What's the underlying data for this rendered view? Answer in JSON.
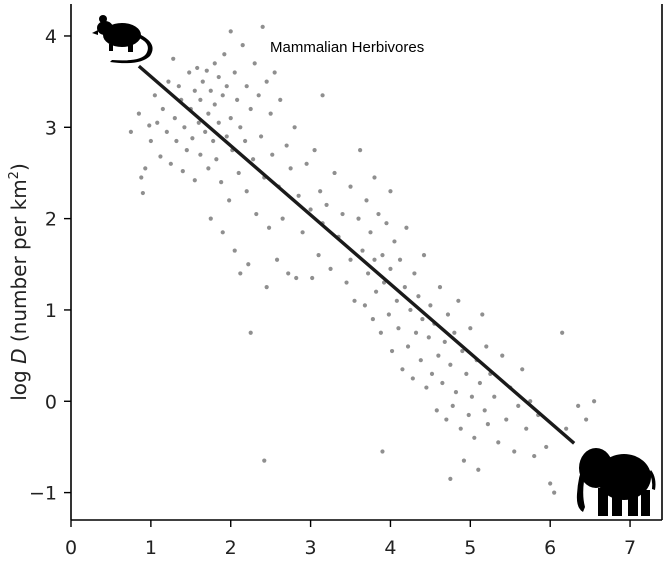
{
  "chart_data": {
    "type": "scatter",
    "title": "",
    "annotation": "Mammalian Herbivores",
    "xlabel": "",
    "ylabel": {
      "prefix": "log ",
      "var": "D",
      "unit": " (number per km",
      "sup": "2",
      "close": ")"
    },
    "xlim": [
      0,
      7.4
    ],
    "ylim": [
      -1.3,
      4.35
    ],
    "x_ticks": [
      0,
      1,
      2,
      3,
      4,
      5,
      6,
      7
    ],
    "y_ticks": [
      -1,
      0,
      1,
      2,
      3,
      4
    ],
    "y_tick_labels": [
      "−1",
      "0",
      "1",
      "2",
      "3",
      "4"
    ],
    "grid": false,
    "legend": "none",
    "icons": [
      "mouse-silhouette-icon",
      "elephant-silhouette-icon"
    ],
    "colors": {
      "points": "#8f8f8f",
      "fit_line": "#1a1a1a",
      "axes": "#000000"
    },
    "fit_line": {
      "x": [
        0.85,
        6.3
      ],
      "y": [
        3.67,
        -0.46
      ]
    },
    "series": [
      {
        "points": [
          [
            0.75,
            2.95
          ],
          [
            0.85,
            3.15
          ],
          [
            0.88,
            2.45
          ],
          [
            0.9,
            2.28
          ],
          [
            0.93,
            2.55
          ],
          [
            0.98,
            3.02
          ],
          [
            1.0,
            2.85
          ],
          [
            1.05,
            3.35
          ],
          [
            1.08,
            3.05
          ],
          [
            1.12,
            2.68
          ],
          [
            1.15,
            3.2
          ],
          [
            1.2,
            2.95
          ],
          [
            1.22,
            3.5
          ],
          [
            1.25,
            2.6
          ],
          [
            1.28,
            3.75
          ],
          [
            1.3,
            3.1
          ],
          [
            1.32,
            2.85
          ],
          [
            1.35,
            3.45
          ],
          [
            1.38,
            3.3
          ],
          [
            1.4,
            2.52
          ],
          [
            1.42,
            3.0
          ],
          [
            1.45,
            2.75
          ],
          [
            1.48,
            3.6
          ],
          [
            1.5,
            3.2
          ],
          [
            1.52,
            2.88
          ],
          [
            1.55,
            3.4
          ],
          [
            1.55,
            2.42
          ],
          [
            1.58,
            3.65
          ],
          [
            1.6,
            3.05
          ],
          [
            1.62,
            2.7
          ],
          [
            1.62,
            3.3
          ],
          [
            1.65,
            3.5
          ],
          [
            1.68,
            2.95
          ],
          [
            1.7,
            3.62
          ],
          [
            1.72,
            3.15
          ],
          [
            1.72,
            2.55
          ],
          [
            1.75,
            3.4
          ],
          [
            1.75,
            2.0
          ],
          [
            1.78,
            2.85
          ],
          [
            1.8,
            3.25
          ],
          [
            1.8,
            3.7
          ],
          [
            1.82,
            2.65
          ],
          [
            1.85,
            3.55
          ],
          [
            1.85,
            3.05
          ],
          [
            1.88,
            2.4
          ],
          [
            1.9,
            3.35
          ],
          [
            1.9,
            1.85
          ],
          [
            1.92,
            3.8
          ],
          [
            1.95,
            2.9
          ],
          [
            1.95,
            3.45
          ],
          [
            1.98,
            2.2
          ],
          [
            2.0,
            3.1
          ],
          [
            2.0,
            4.05
          ],
          [
            2.02,
            2.75
          ],
          [
            2.05,
            3.6
          ],
          [
            2.05,
            1.65
          ],
          [
            2.08,
            3.3
          ],
          [
            2.1,
            2.5
          ],
          [
            2.12,
            3.0
          ],
          [
            2.12,
            1.4
          ],
          [
            2.15,
            3.9
          ],
          [
            2.18,
            2.85
          ],
          [
            2.2,
            3.45
          ],
          [
            2.2,
            2.3
          ],
          [
            2.22,
            1.5
          ],
          [
            2.25,
            3.2
          ],
          [
            2.25,
            0.75
          ],
          [
            2.28,
            2.65
          ],
          [
            2.3,
            3.7
          ],
          [
            2.32,
            2.05
          ],
          [
            2.35,
            3.35
          ],
          [
            2.38,
            2.9
          ],
          [
            2.4,
            4.1
          ],
          [
            2.42,
            2.45
          ],
          [
            2.45,
            3.5
          ],
          [
            2.45,
            1.25
          ],
          [
            2.48,
            1.9
          ],
          [
            2.5,
            3.15
          ],
          [
            2.52,
            2.7
          ],
          [
            2.55,
            3.6
          ],
          [
            2.58,
            1.55
          ],
          [
            2.6,
            2.35
          ],
          [
            2.62,
            3.3
          ],
          [
            2.65,
            2.0
          ],
          [
            2.7,
            2.8
          ],
          [
            2.72,
            1.4
          ],
          [
            2.75,
            2.55
          ],
          [
            2.8,
            3.0
          ],
          [
            2.82,
            1.35
          ],
          [
            2.85,
            2.25
          ],
          [
            2.9,
            1.85
          ],
          [
            2.95,
            2.6
          ],
          [
            3.0,
            2.1
          ],
          [
            3.02,
            1.35
          ],
          [
            3.05,
            2.75
          ],
          [
            3.1,
            1.6
          ],
          [
            3.12,
            2.3
          ],
          [
            3.15,
            1.95
          ],
          [
            3.15,
            3.35
          ],
          [
            3.2,
            2.15
          ],
          [
            3.25,
            1.45
          ],
          [
            3.3,
            2.5
          ],
          [
            3.35,
            1.8
          ],
          [
            3.4,
            2.05
          ],
          [
            3.45,
            1.3
          ],
          [
            3.5,
            2.35
          ],
          [
            3.5,
            1.55
          ],
          [
            3.55,
            1.1
          ],
          [
            3.6,
            2.0
          ],
          [
            3.62,
            2.75
          ],
          [
            3.65,
            1.65
          ],
          [
            3.68,
            1.05
          ],
          [
            3.7,
            2.2
          ],
          [
            3.72,
            1.4
          ],
          [
            3.75,
            1.85
          ],
          [
            3.78,
            0.9
          ],
          [
            3.8,
            1.55
          ],
          [
            3.8,
            2.45
          ],
          [
            3.82,
            1.2
          ],
          [
            3.85,
            2.05
          ],
          [
            3.88,
            0.75
          ],
          [
            3.9,
            1.6
          ],
          [
            3.92,
            1.3
          ],
          [
            3.95,
            1.95
          ],
          [
            3.98,
            0.95
          ],
          [
            4.0,
            2.3
          ],
          [
            4.0,
            1.45
          ],
          [
            4.02,
            0.55
          ],
          [
            4.05,
            1.75
          ],
          [
            4.08,
            1.1
          ],
          [
            4.1,
            0.8
          ],
          [
            4.12,
            1.55
          ],
          [
            4.15,
            0.35
          ],
          [
            4.18,
            1.25
          ],
          [
            4.2,
            1.9
          ],
          [
            4.22,
            0.6
          ],
          [
            4.25,
            1.0
          ],
          [
            4.28,
            0.25
          ],
          [
            4.3,
            1.4
          ],
          [
            4.32,
            0.75
          ],
          [
            4.35,
            1.15
          ],
          [
            4.38,
            0.45
          ],
          [
            4.4,
            0.9
          ],
          [
            4.42,
            1.6
          ],
          [
            4.45,
            0.15
          ],
          [
            4.48,
            0.7
          ],
          [
            4.5,
            1.05
          ],
          [
            4.52,
            0.3
          ],
          [
            4.55,
            0.85
          ],
          [
            4.58,
            -0.1
          ],
          [
            4.6,
            0.5
          ],
          [
            4.62,
            1.25
          ],
          [
            4.65,
            0.2
          ],
          [
            4.68,
            0.65
          ],
          [
            4.7,
            -0.2
          ],
          [
            4.72,
            0.95
          ],
          [
            4.75,
            0.4
          ],
          [
            4.78,
            -0.05
          ],
          [
            4.8,
            0.75
          ],
          [
            4.82,
            0.1
          ],
          [
            4.85,
            1.1
          ],
          [
            4.88,
            -0.3
          ],
          [
            4.9,
            0.55
          ],
          [
            4.92,
            -0.65
          ],
          [
            4.95,
            0.3
          ],
          [
            4.98,
            -0.15
          ],
          [
            5.0,
            0.8
          ],
          [
            5.02,
            0.05
          ],
          [
            5.05,
            -0.4
          ],
          [
            5.08,
            0.45
          ],
          [
            5.1,
            -0.75
          ],
          [
            5.12,
            0.2
          ],
          [
            5.15,
            0.95
          ],
          [
            5.18,
            -0.1
          ],
          [
            5.2,
            0.6
          ],
          [
            5.22,
            -0.25
          ],
          [
            5.25,
            0.3
          ],
          [
            5.3,
            0.05
          ],
          [
            5.35,
            -0.45
          ],
          [
            5.4,
            0.5
          ],
          [
            5.45,
            -0.2
          ],
          [
            5.5,
            0.15
          ],
          [
            5.55,
            -0.55
          ],
          [
            5.6,
            -0.05
          ],
          [
            5.65,
            0.35
          ],
          [
            5.7,
            -0.3
          ],
          [
            5.75,
            0.0
          ],
          [
            5.8,
            -0.6
          ],
          [
            5.85,
            -0.15
          ],
          [
            5.95,
            -0.5
          ],
          [
            6.0,
            -0.9
          ],
          [
            6.05,
            -1.0
          ],
          [
            6.15,
            0.75
          ],
          [
            6.2,
            -0.3
          ],
          [
            6.35,
            -0.05
          ],
          [
            6.45,
            -0.2
          ],
          [
            6.55,
            0.0
          ],
          [
            2.42,
            -0.65
          ],
          [
            3.9,
            -0.55
          ],
          [
            4.75,
            -0.85
          ]
        ]
      }
    ]
  }
}
